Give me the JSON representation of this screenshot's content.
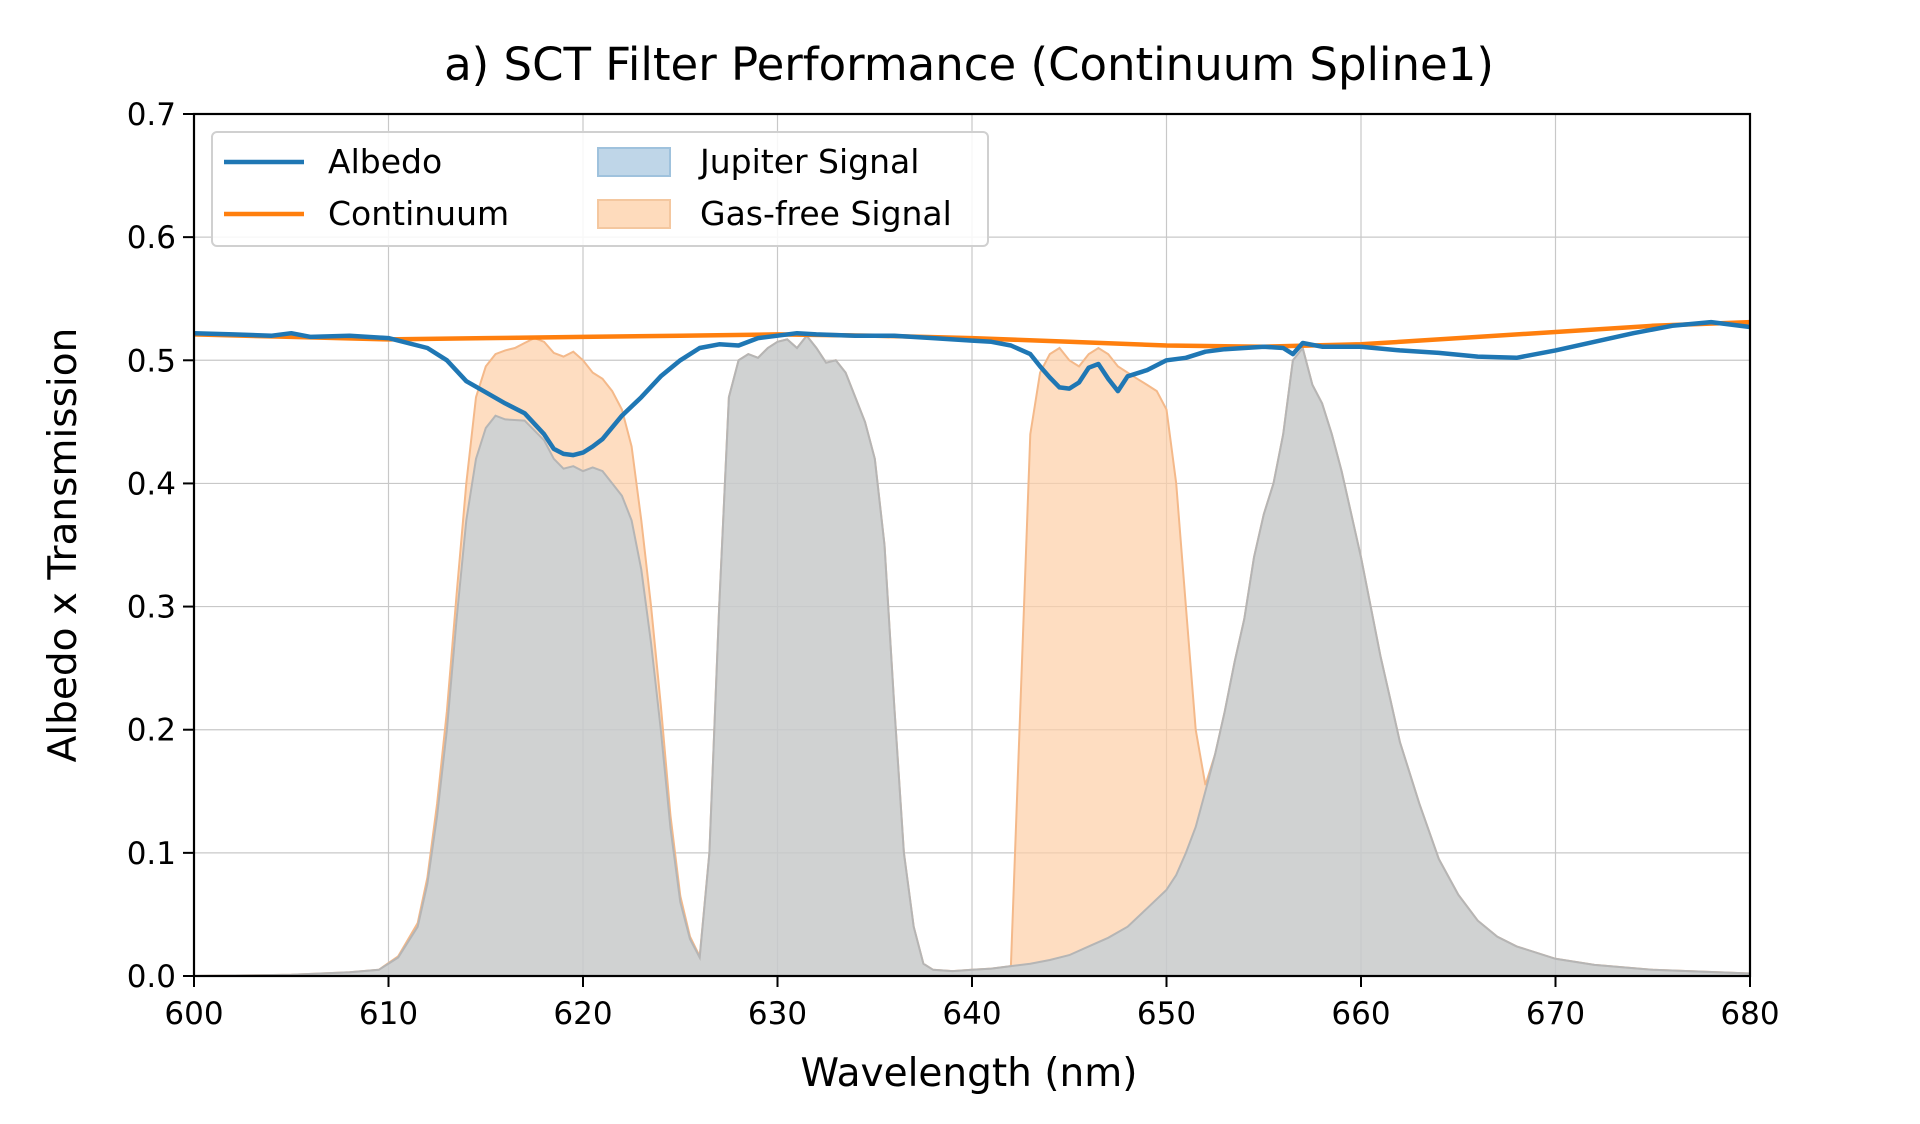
{
  "chart_data": {
    "type": "area",
    "title": "a) SCT Filter Performance (Continuum Spline1)",
    "xlabel": "Wavelength (nm)",
    "ylabel": "Albedo x Transmission",
    "xlim": [
      600,
      680
    ],
    "ylim": [
      0,
      0.7
    ],
    "xticks": [
      "600",
      "610",
      "620",
      "630",
      "640",
      "650",
      "660",
      "670",
      "680"
    ],
    "yticks": [
      "0.0",
      "0.1",
      "0.2",
      "0.3",
      "0.4",
      "0.5",
      "0.6",
      "0.7"
    ],
    "grid": true,
    "legend": {
      "placement": "top-left",
      "entries": [
        "Albedo",
        "Continuum",
        "Jupiter Signal",
        "Gas-free Signal"
      ]
    },
    "colors": {
      "albedo": "#1f77b4",
      "continuum": "#ff7f0e",
      "jupiter_fill": "#a9c8e0",
      "gasfree_fill": "#fdcfa6"
    },
    "series": [
      {
        "name": "Albedo",
        "kind": "line",
        "x": [
          600,
          602,
          604,
          605,
          606,
          608,
          610,
          612,
          613,
          614,
          615,
          616,
          617,
          618,
          618.5,
          619,
          619.5,
          620,
          620.5,
          621,
          622,
          623,
          624,
          625,
          626,
          627,
          628,
          629,
          630,
          631,
          632,
          634,
          636,
          638,
          640,
          641,
          642,
          643,
          643.5,
          644,
          644.5,
          645,
          645.5,
          646,
          646.5,
          647,
          647.5,
          648,
          649,
          650,
          651,
          652,
          653,
          654,
          655,
          656,
          656.5,
          657,
          658,
          660,
          662,
          664,
          666,
          668,
          670,
          672,
          674,
          676,
          678,
          680
        ],
        "y": [
          0.522,
          0.521,
          0.52,
          0.522,
          0.519,
          0.52,
          0.518,
          0.51,
          0.5,
          0.483,
          0.474,
          0.465,
          0.457,
          0.44,
          0.428,
          0.424,
          0.423,
          0.425,
          0.43,
          0.436,
          0.455,
          0.47,
          0.487,
          0.5,
          0.51,
          0.513,
          0.512,
          0.518,
          0.52,
          0.522,
          0.521,
          0.52,
          0.52,
          0.518,
          0.516,
          0.515,
          0.512,
          0.505,
          0.495,
          0.486,
          0.478,
          0.477,
          0.482,
          0.494,
          0.497,
          0.485,
          0.475,
          0.487,
          0.492,
          0.5,
          0.502,
          0.507,
          0.509,
          0.51,
          0.511,
          0.51,
          0.505,
          0.514,
          0.511,
          0.511,
          0.508,
          0.506,
          0.503,
          0.502,
          0.508,
          0.515,
          0.522,
          0.528,
          0.531,
          0.527
        ]
      },
      {
        "name": "Continuum",
        "kind": "line",
        "x": [
          600,
          605,
          610,
          615,
          620,
          625,
          630,
          635,
          640,
          645,
          650,
          655,
          660,
          665,
          670,
          675,
          680
        ],
        "y": [
          0.521,
          0.519,
          0.517,
          0.518,
          0.519,
          0.52,
          0.521,
          0.52,
          0.518,
          0.515,
          0.512,
          0.511,
          0.513,
          0.518,
          0.523,
          0.528,
          0.531
        ]
      },
      {
        "name": "Jupiter Signal",
        "kind": "area",
        "x": [
          600,
          605,
          608,
          609.5,
          610.5,
          611.5,
          612,
          612.5,
          613,
          613.5,
          614,
          614.5,
          615,
          615.5,
          616,
          617,
          618,
          618.5,
          619,
          619.5,
          620,
          620.5,
          621,
          621.5,
          622,
          622.5,
          623,
          623.5,
          624,
          624.5,
          625,
          625.5,
          626,
          626.5,
          627,
          627.5,
          628,
          628.5,
          629,
          629.5,
          630,
          630.5,
          631,
          631.5,
          632,
          632.5,
          633,
          633.5,
          634,
          634.5,
          635,
          635.5,
          636,
          636.5,
          637,
          637.5,
          638,
          639,
          640,
          641,
          642,
          643,
          644,
          645,
          646,
          647,
          648,
          649,
          650,
          650.5,
          651,
          651.5,
          652,
          652.5,
          653,
          653.5,
          654,
          654.5,
          655,
          655.5,
          656,
          656.5,
          657,
          657.5,
          658,
          658.5,
          659,
          659.5,
          660,
          660.5,
          661,
          661.5,
          662,
          663,
          664,
          665,
          666,
          667,
          668,
          670,
          672,
          675,
          680
        ],
        "y": [
          0,
          0.001,
          0.003,
          0.005,
          0.015,
          0.04,
          0.075,
          0.13,
          0.2,
          0.29,
          0.37,
          0.42,
          0.445,
          0.455,
          0.452,
          0.451,
          0.435,
          0.42,
          0.412,
          0.414,
          0.41,
          0.413,
          0.41,
          0.4,
          0.39,
          0.37,
          0.33,
          0.27,
          0.2,
          0.12,
          0.06,
          0.03,
          0.015,
          0.1,
          0.3,
          0.47,
          0.5,
          0.505,
          0.502,
          0.51,
          0.515,
          0.517,
          0.51,
          0.52,
          0.51,
          0.498,
          0.5,
          0.49,
          0.47,
          0.45,
          0.42,
          0.35,
          0.22,
          0.1,
          0.04,
          0.01,
          0.005,
          0.004,
          0.005,
          0.006,
          0.008,
          0.01,
          0.013,
          0.017,
          0.024,
          0.031,
          0.04,
          0.055,
          0.07,
          0.082,
          0.1,
          0.121,
          0.15,
          0.18,
          0.215,
          0.255,
          0.29,
          0.34,
          0.375,
          0.4,
          0.44,
          0.5,
          0.51,
          0.48,
          0.465,
          0.44,
          0.41,
          0.375,
          0.34,
          0.3,
          0.26,
          0.225,
          0.19,
          0.14,
          0.095,
          0.066,
          0.045,
          0.032,
          0.024,
          0.014,
          0.009,
          0.005,
          0.002
        ]
      },
      {
        "name": "Gas-free Signal",
        "kind": "area",
        "x": [
          600,
          605,
          608,
          609.5,
          610.5,
          611.5,
          612,
          612.5,
          613,
          613.5,
          614,
          614.5,
          615,
          615.5,
          616,
          616.5,
          617,
          617.5,
          618,
          618.5,
          619,
          619.5,
          620,
          620.5,
          621,
          621.5,
          622,
          622.5,
          623,
          623.5,
          624,
          624.5,
          625,
          625.5,
          626,
          626.5,
          627,
          627.5,
          628,
          628.5,
          629,
          629.5,
          630,
          630.5,
          631,
          631.5,
          632,
          632.5,
          633,
          633.5,
          634,
          634.5,
          635,
          635.5,
          636,
          636.5,
          637,
          637.5,
          638,
          639,
          640,
          641,
          642,
          643,
          643.5,
          644,
          644.5,
          645,
          645.5,
          646,
          646.5,
          647,
          647.5,
          648,
          648.5,
          649,
          649.5,
          650,
          650.5,
          651,
          651.5,
          652,
          652.5,
          653,
          653.5,
          654,
          654.5,
          655,
          655.5,
          656,
          656.5,
          657,
          657.5,
          658,
          658.5,
          659,
          659.5,
          660,
          660.5,
          661,
          661.5,
          662,
          663,
          664,
          665,
          666,
          667,
          668,
          670,
          672,
          675,
          680
        ],
        "y": [
          0,
          0.001,
          0.003,
          0.005,
          0.016,
          0.043,
          0.08,
          0.14,
          0.215,
          0.31,
          0.4,
          0.47,
          0.495,
          0.505,
          0.508,
          0.51,
          0.514,
          0.518,
          0.515,
          0.506,
          0.503,
          0.507,
          0.5,
          0.49,
          0.485,
          0.475,
          0.46,
          0.43,
          0.37,
          0.3,
          0.22,
          0.13,
          0.065,
          0.032,
          0.016,
          0.1,
          0.3,
          0.47,
          0.5,
          0.505,
          0.502,
          0.51,
          0.515,
          0.517,
          0.51,
          0.52,
          0.51,
          0.498,
          0.5,
          0.49,
          0.47,
          0.45,
          0.42,
          0.35,
          0.22,
          0.1,
          0.04,
          0.01,
          0.005,
          0.004,
          0.005,
          0.006,
          0.008,
          0.44,
          0.49,
          0.505,
          0.51,
          0.5,
          0.495,
          0.505,
          0.51,
          0.505,
          0.495,
          0.49,
          0.485,
          0.48,
          0.475,
          0.46,
          0.4,
          0.3,
          0.2,
          0.155,
          0.18,
          0.215,
          0.255,
          0.29,
          0.34,
          0.375,
          0.4,
          0.44,
          0.5,
          0.51,
          0.48,
          0.465,
          0.44,
          0.41,
          0.375,
          0.34,
          0.3,
          0.26,
          0.225,
          0.19,
          0.14,
          0.095,
          0.066,
          0.045,
          0.032,
          0.024,
          0.014,
          0.009,
          0.005,
          0.002
        ]
      }
    ]
  }
}
